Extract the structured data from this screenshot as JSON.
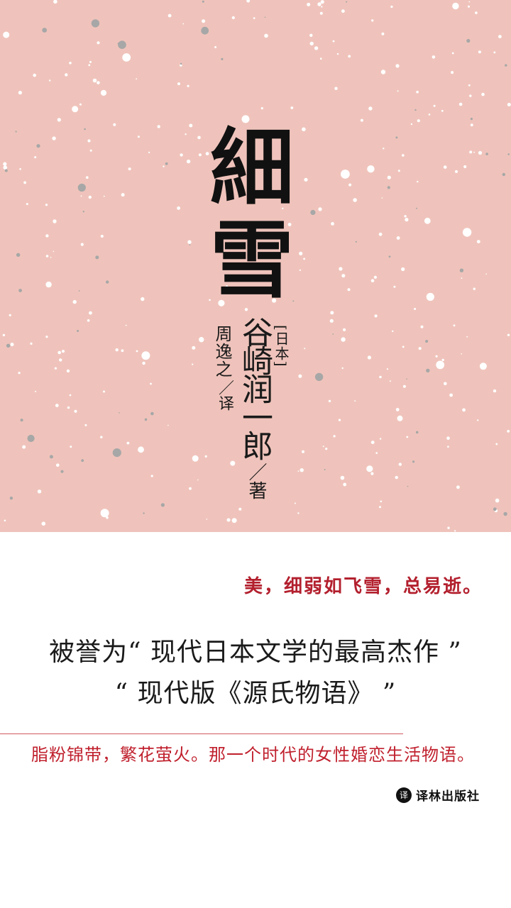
{
  "colors": {
    "cover_pink": "#efc3bb",
    "snow_white": "#ffffff",
    "snow_gray": "#a7a7a7",
    "accent_red": "#b3202e"
  },
  "cover": {
    "title_chars": [
      "細",
      "雪"
    ],
    "author_origin": "[日本]",
    "author_name": "谷崎润一郎",
    "author_role": "／著",
    "translator_name": "周逸之",
    "translator_role": "／译"
  },
  "tagline": "美，细弱如飞雪，总易逝。",
  "praise": {
    "line1": "被誉为“ 现代日本文学的最高杰作 ”",
    "line2": "“ 现代版《源氏物语》 ”"
  },
  "description": "脂粉锦带，繁花萤火。那一个时代的女性婚恋生活物语。",
  "publisher": {
    "logo_icon": "publisher-seal-icon",
    "logo_glyph": "译",
    "name": "译林出版社"
  }
}
